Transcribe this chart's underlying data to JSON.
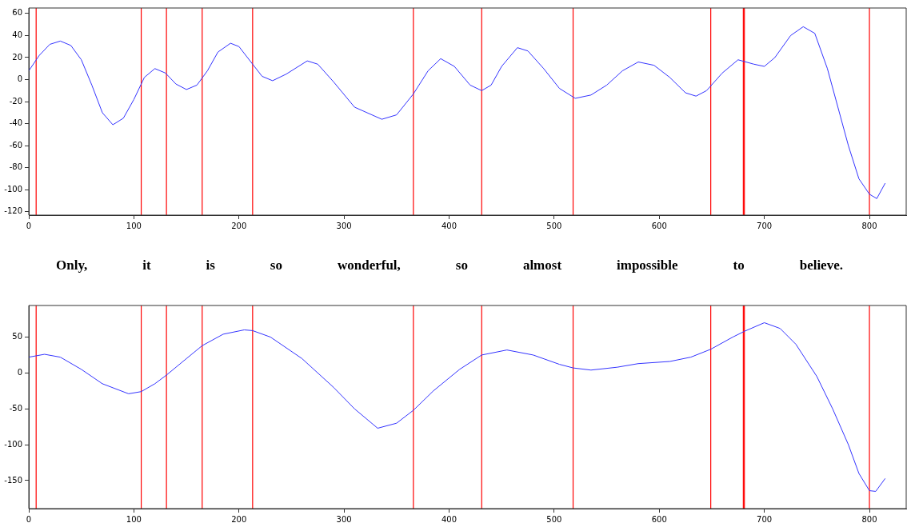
{
  "chart_data": [
    {
      "type": "line",
      "xlim": [
        0,
        835
      ],
      "xticks": [
        0,
        100,
        200,
        300,
        400,
        500,
        600,
        700,
        800
      ],
      "ylim": [
        -123,
        65
      ],
      "yticks": [
        -120,
        -100,
        -80,
        -60,
        -40,
        -20,
        0,
        20,
        40,
        60
      ],
      "grid": false,
      "legend": false,
      "marker": "none",
      "series": [
        {
          "color": "#3333ff",
          "x": [
            0,
            10,
            20,
            30,
            40,
            50,
            60,
            70,
            80,
            90,
            100,
            110,
            120,
            130,
            140,
            150,
            160,
            170,
            180,
            192,
            200,
            213,
            222,
            232,
            245,
            265,
            275,
            290,
            310,
            336,
            350,
            366,
            380,
            392,
            405,
            420,
            431,
            440,
            450,
            465,
            475,
            490,
            505,
            520,
            535,
            550,
            565,
            580,
            595,
            610,
            625,
            635,
            645,
            660,
            675,
            690,
            700,
            710,
            725,
            737,
            748,
            760,
            770,
            780,
            790,
            800,
            807,
            815
          ],
          "values": [
            8,
            22,
            32,
            35,
            31,
            18,
            -5,
            -30,
            -41,
            -35,
            -18,
            2,
            10,
            6,
            -4,
            -9,
            -5,
            8,
            25,
            33,
            30,
            14,
            3,
            -1,
            5,
            17,
            14,
            -2,
            -25,
            -36,
            -32,
            -13,
            8,
            19,
            12,
            -5,
            -10,
            -5,
            12,
            29,
            26,
            10,
            -8,
            -17,
            -14,
            -5,
            8,
            16,
            13,
            2,
            -12,
            -15,
            -10,
            6,
            18,
            14,
            12,
            20,
            40,
            48,
            42,
            10,
            -25,
            -60,
            -90,
            -104,
            -108,
            -94
          ]
        }
      ],
      "ref_lines": [
        {
          "axis": "x",
          "value": 7,
          "color": "#ff0000"
        },
        {
          "axis": "x",
          "value": 107,
          "color": "#ff0000"
        },
        {
          "axis": "x",
          "value": 131,
          "color": "#ff0000"
        },
        {
          "axis": "x",
          "value": 165,
          "color": "#ff0000"
        },
        {
          "axis": "x",
          "value": 213,
          "color": "#ff0000"
        },
        {
          "axis": "x",
          "value": 366,
          "color": "#ff0000"
        },
        {
          "axis": "x",
          "value": 431,
          "color": "#ff0000"
        },
        {
          "axis": "x",
          "value": 518,
          "color": "#ff0000"
        },
        {
          "axis": "x",
          "value": 649,
          "color": "#ff0000"
        },
        {
          "axis": "x",
          "value": 680,
          "color": "#ff0000"
        },
        {
          "axis": "x",
          "value": 681,
          "color": "#ff0000"
        },
        {
          "axis": "x",
          "value": 800,
          "color": "#ff0000"
        }
      ],
      "annotations": [
        "Only,",
        "it",
        "is",
        "so",
        "wonderful,",
        "so",
        "almost",
        "impossible",
        "to",
        "believe."
      ]
    },
    {
      "type": "line",
      "xlim": [
        0,
        835
      ],
      "xticks": [
        0,
        100,
        200,
        300,
        400,
        500,
        600,
        700,
        800
      ],
      "ylim": [
        -189,
        94
      ],
      "yticks": [
        -150,
        -100,
        -50,
        0,
        50
      ],
      "grid": false,
      "legend": false,
      "marker": "none",
      "series": [
        {
          "color": "#3333ff",
          "x": [
            0,
            15,
            30,
            50,
            70,
            95,
            107,
            120,
            131,
            150,
            165,
            185,
            205,
            213,
            230,
            260,
            290,
            310,
            332,
            350,
            366,
            385,
            410,
            431,
            455,
            480,
            505,
            518,
            535,
            560,
            580,
            610,
            630,
            649,
            670,
            681,
            700,
            715,
            730,
            750,
            765,
            780,
            790,
            800,
            806,
            815
          ],
          "values": [
            22,
            26,
            22,
            5,
            -15,
            -29,
            -26,
            -15,
            -3,
            20,
            38,
            54,
            60,
            59,
            50,
            20,
            -20,
            -50,
            -77,
            -70,
            -52,
            -25,
            5,
            25,
            32,
            25,
            12,
            7,
            4,
            8,
            13,
            16,
            22,
            33,
            50,
            58,
            70,
            62,
            40,
            -5,
            -50,
            -100,
            -140,
            -164,
            -165,
            -147
          ]
        }
      ],
      "ref_lines": [
        {
          "axis": "x",
          "value": 7,
          "color": "#ff0000"
        },
        {
          "axis": "x",
          "value": 107,
          "color": "#ff0000"
        },
        {
          "axis": "x",
          "value": 131,
          "color": "#ff0000"
        },
        {
          "axis": "x",
          "value": 165,
          "color": "#ff0000"
        },
        {
          "axis": "x",
          "value": 213,
          "color": "#ff0000"
        },
        {
          "axis": "x",
          "value": 366,
          "color": "#ff0000"
        },
        {
          "axis": "x",
          "value": 431,
          "color": "#ff0000"
        },
        {
          "axis": "x",
          "value": 518,
          "color": "#ff0000"
        },
        {
          "axis": "x",
          "value": 649,
          "color": "#ff0000"
        },
        {
          "axis": "x",
          "value": 680,
          "color": "#ff0000"
        },
        {
          "axis": "x",
          "value": 681,
          "color": "#ff0000"
        },
        {
          "axis": "x",
          "value": 800,
          "color": "#ff0000"
        }
      ]
    }
  ]
}
